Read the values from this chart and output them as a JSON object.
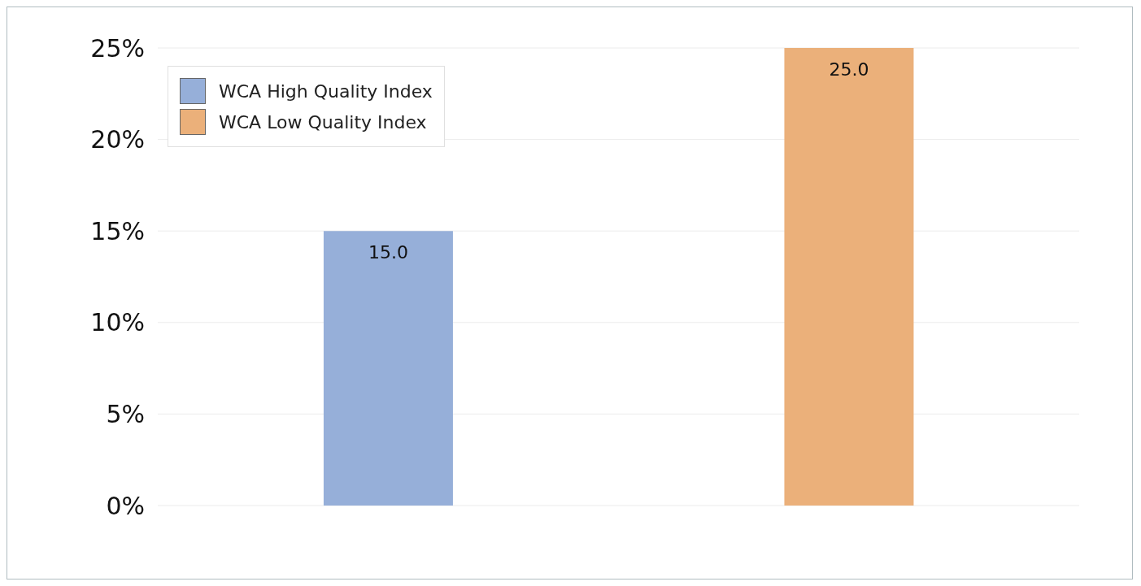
{
  "chart_data": {
    "type": "bar",
    "categories": [
      null,
      null
    ],
    "series": [
      {
        "name": "WCA High Quality Index",
        "color": "#96afd9",
        "values": [
          15,
          null
        ],
        "value_labels": [
          "15.0",
          null
        ]
      },
      {
        "name": "WCA Low Quality Index",
        "color": "#ebb07a",
        "values": [
          null,
          25
        ],
        "value_labels": [
          null,
          "25.0"
        ]
      }
    ],
    "ylim": [
      0,
      25
    ],
    "yticks": [
      {
        "value": 0,
        "label": "0%"
      },
      {
        "value": 5,
        "label": "5%"
      },
      {
        "value": 10,
        "label": "10%"
      },
      {
        "value": 15,
        "label": "15%"
      },
      {
        "value": 20,
        "label": "20%"
      },
      {
        "value": 25,
        "label": "25%"
      }
    ],
    "grid": "y",
    "legend": "top left"
  }
}
